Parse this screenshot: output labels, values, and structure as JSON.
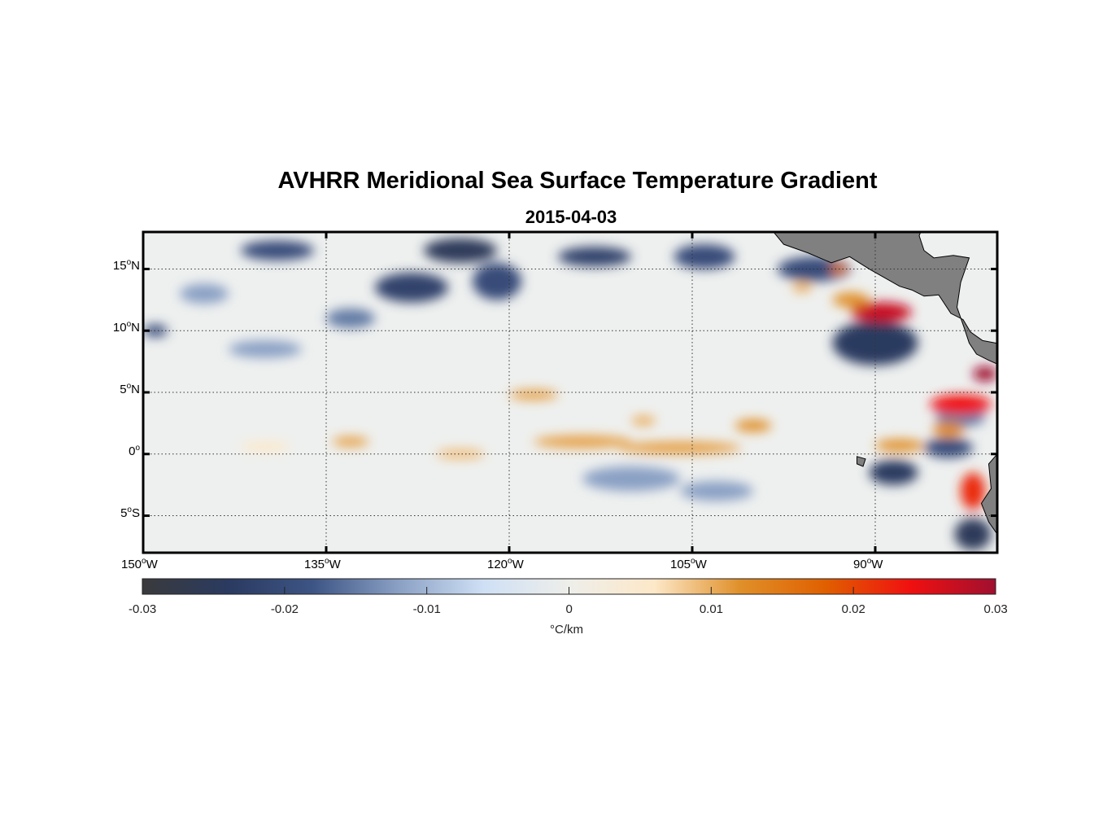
{
  "chart_data": {
    "type": "heatmap",
    "title": "AVHRR Meridional Sea Surface Temperature Gradient",
    "subtitle": "2015-04-03",
    "x_range": [
      -150,
      -80
    ],
    "y_range": [
      -8,
      18
    ],
    "x_ticks": [
      {
        "v": -150,
        "n": "150",
        "h": "W"
      },
      {
        "v": -135,
        "n": "135",
        "h": "W"
      },
      {
        "v": -120,
        "n": "120",
        "h": "W"
      },
      {
        "v": -105,
        "n": "105",
        "h": "W"
      },
      {
        "v": -90,
        "n": "90",
        "h": "W"
      }
    ],
    "y_ticks": [
      {
        "v": 15,
        "n": "15",
        "h": "N"
      },
      {
        "v": 10,
        "n": "10",
        "h": "N"
      },
      {
        "v": 5,
        "n": "5",
        "h": "N"
      },
      {
        "v": 0,
        "n": "0",
        "h": ""
      },
      {
        "v": -5,
        "n": "5",
        "h": "S"
      }
    ],
    "colorbar": {
      "range": [
        -0.03,
        0.03
      ],
      "ticks": [
        "-0.03",
        "-0.02",
        "-0.01",
        "0",
        "0.01",
        "0.02",
        "0.03"
      ],
      "label": "°C/km",
      "colors": [
        "#3a3a3c",
        "#2a3a60",
        "#3d5585",
        "#8aa0c4",
        "#cfe0f5",
        "#eeeeea",
        "#fde8c8",
        "#e0902a",
        "#e06000",
        "#f01010",
        "#a01030"
      ]
    },
    "features": [
      {
        "lon": -139,
        "lat": 16.5,
        "rx": 3,
        "ry": 0.8,
        "v": -0.02
      },
      {
        "lon": -124,
        "lat": 16.5,
        "rx": 3,
        "ry": 1,
        "v": -0.025
      },
      {
        "lon": -128,
        "lat": 13.5,
        "rx": 3,
        "ry": 1.2,
        "v": -0.022
      },
      {
        "lon": -121,
        "lat": 14,
        "rx": 2,
        "ry": 1.5,
        "v": -0.02
      },
      {
        "lon": -113,
        "lat": 16,
        "rx": 3,
        "ry": 0.8,
        "v": -0.022
      },
      {
        "lon": -104,
        "lat": 16,
        "rx": 2.5,
        "ry": 1,
        "v": -0.02
      },
      {
        "lon": -145,
        "lat": 13,
        "rx": 2,
        "ry": 0.8,
        "v": -0.012
      },
      {
        "lon": -133,
        "lat": 11,
        "rx": 2,
        "ry": 0.8,
        "v": -0.015
      },
      {
        "lon": -140,
        "lat": 8.5,
        "rx": 3,
        "ry": 0.7,
        "v": -0.012
      },
      {
        "lon": -149,
        "lat": 10,
        "rx": 1,
        "ry": 0.5,
        "v": -0.02
      },
      {
        "lon": -95,
        "lat": 15,
        "rx": 3,
        "ry": 1,
        "v": -0.02
      },
      {
        "lon": -90,
        "lat": 9,
        "rx": 3.5,
        "ry": 1.8,
        "v": -0.024
      },
      {
        "lon": -88.5,
        "lat": -1.5,
        "rx": 2,
        "ry": 1,
        "v": -0.024
      },
      {
        "lon": -84,
        "lat": 0.5,
        "rx": 2,
        "ry": 0.8,
        "v": -0.02
      },
      {
        "lon": -83,
        "lat": 3,
        "rx": 2,
        "ry": 0.8,
        "v": -0.015
      },
      {
        "lon": -82,
        "lat": -6.5,
        "rx": 1.5,
        "ry": 1.3,
        "v": -0.025
      },
      {
        "lon": -110,
        "lat": -2,
        "rx": 4,
        "ry": 1,
        "v": -0.012
      },
      {
        "lon": -103,
        "lat": -3,
        "rx": 3,
        "ry": 0.8,
        "v": -0.012
      },
      {
        "lon": -89.5,
        "lat": 11.5,
        "rx": 2.5,
        "ry": 0.8,
        "v": 0.027
      },
      {
        "lon": -92,
        "lat": 12.5,
        "rx": 1.5,
        "ry": 0.6,
        "v": 0.012
      },
      {
        "lon": -83,
        "lat": 4,
        "rx": 2.5,
        "ry": 0.8,
        "v": 0.024
      },
      {
        "lon": -81,
        "lat": 6.5,
        "rx": 1,
        "ry": 0.6,
        "v": 0.03
      },
      {
        "lon": -84,
        "lat": 2,
        "rx": 1.3,
        "ry": 0.6,
        "v": 0.013
      },
      {
        "lon": -82,
        "lat": -3,
        "rx": 1,
        "ry": 1.5,
        "v": 0.022
      },
      {
        "lon": -88,
        "lat": 0.7,
        "rx": 2,
        "ry": 0.5,
        "v": 0.012
      },
      {
        "lon": -93,
        "lat": 15,
        "rx": 0.7,
        "ry": 0.4,
        "v": 0.015
      },
      {
        "lon": -106,
        "lat": 0.5,
        "rx": 5,
        "ry": 0.5,
        "v": 0.011
      },
      {
        "lon": -114,
        "lat": 1,
        "rx": 4,
        "ry": 0.5,
        "v": 0.011
      },
      {
        "lon": -100,
        "lat": 2.3,
        "rx": 1.5,
        "ry": 0.5,
        "v": 0.012
      },
      {
        "lon": -118,
        "lat": 4.8,
        "rx": 2,
        "ry": 0.4,
        "v": 0.011
      },
      {
        "lon": -133,
        "lat": 1,
        "rx": 1.5,
        "ry": 0.4,
        "v": 0.011
      },
      {
        "lon": -124,
        "lat": 0,
        "rx": 2,
        "ry": 0.4,
        "v": 0.009
      },
      {
        "lon": -109,
        "lat": 2.7,
        "rx": 1,
        "ry": 0.4,
        "v": 0.01
      },
      {
        "lon": -140,
        "lat": 0.6,
        "rx": 2,
        "ry": 0.4,
        "v": 0.006
      },
      {
        "lon": -96,
        "lat": 13.5,
        "rx": 0.8,
        "ry": 0.4,
        "v": 0.01
      }
    ],
    "land": [
      [
        [
          -98.5,
          18.2
        ],
        [
          -97.5,
          17
        ],
        [
          -95.5,
          16.3
        ],
        [
          -93.6,
          15.5
        ],
        [
          -92.1,
          16
        ],
        [
          -90.5,
          15
        ],
        [
          -88,
          13.6
        ],
        [
          -87,
          13.3
        ],
        [
          -86,
          12.8
        ],
        [
          -84.8,
          12.9
        ],
        [
          -83.8,
          11.4
        ],
        [
          -82.8,
          10.9
        ],
        [
          -82.2,
          9.9
        ],
        [
          -81.2,
          9.2
        ],
        [
          -79.6,
          8.9
        ],
        [
          -80,
          9.4
        ],
        [
          -80,
          7.3
        ],
        [
          -80.7,
          7.6
        ],
        [
          -81.7,
          8.1
        ],
        [
          -82.3,
          9
        ],
        [
          -82.7,
          10.2
        ],
        [
          -83.3,
          11.9
        ],
        [
          -83,
          13.9
        ],
        [
          -82.3,
          15.9
        ],
        [
          -83.6,
          16.1
        ],
        [
          -85.2,
          15.9
        ],
        [
          -86,
          16.5
        ],
        [
          -86.4,
          17.7
        ],
        [
          -86.2,
          18.2
        ]
      ],
      [
        [
          -80,
          0
        ],
        [
          -80.7,
          -0.8
        ],
        [
          -80.5,
          -2.8
        ],
        [
          -81.3,
          -4
        ],
        [
          -80.7,
          -5.5
        ],
        [
          -80,
          -6.5
        ]
      ],
      [
        [
          -91.5,
          -0.2
        ],
        [
          -90.8,
          -0.4
        ],
        [
          -91,
          -1
        ],
        [
          -91.5,
          -0.8
        ]
      ]
    ]
  }
}
